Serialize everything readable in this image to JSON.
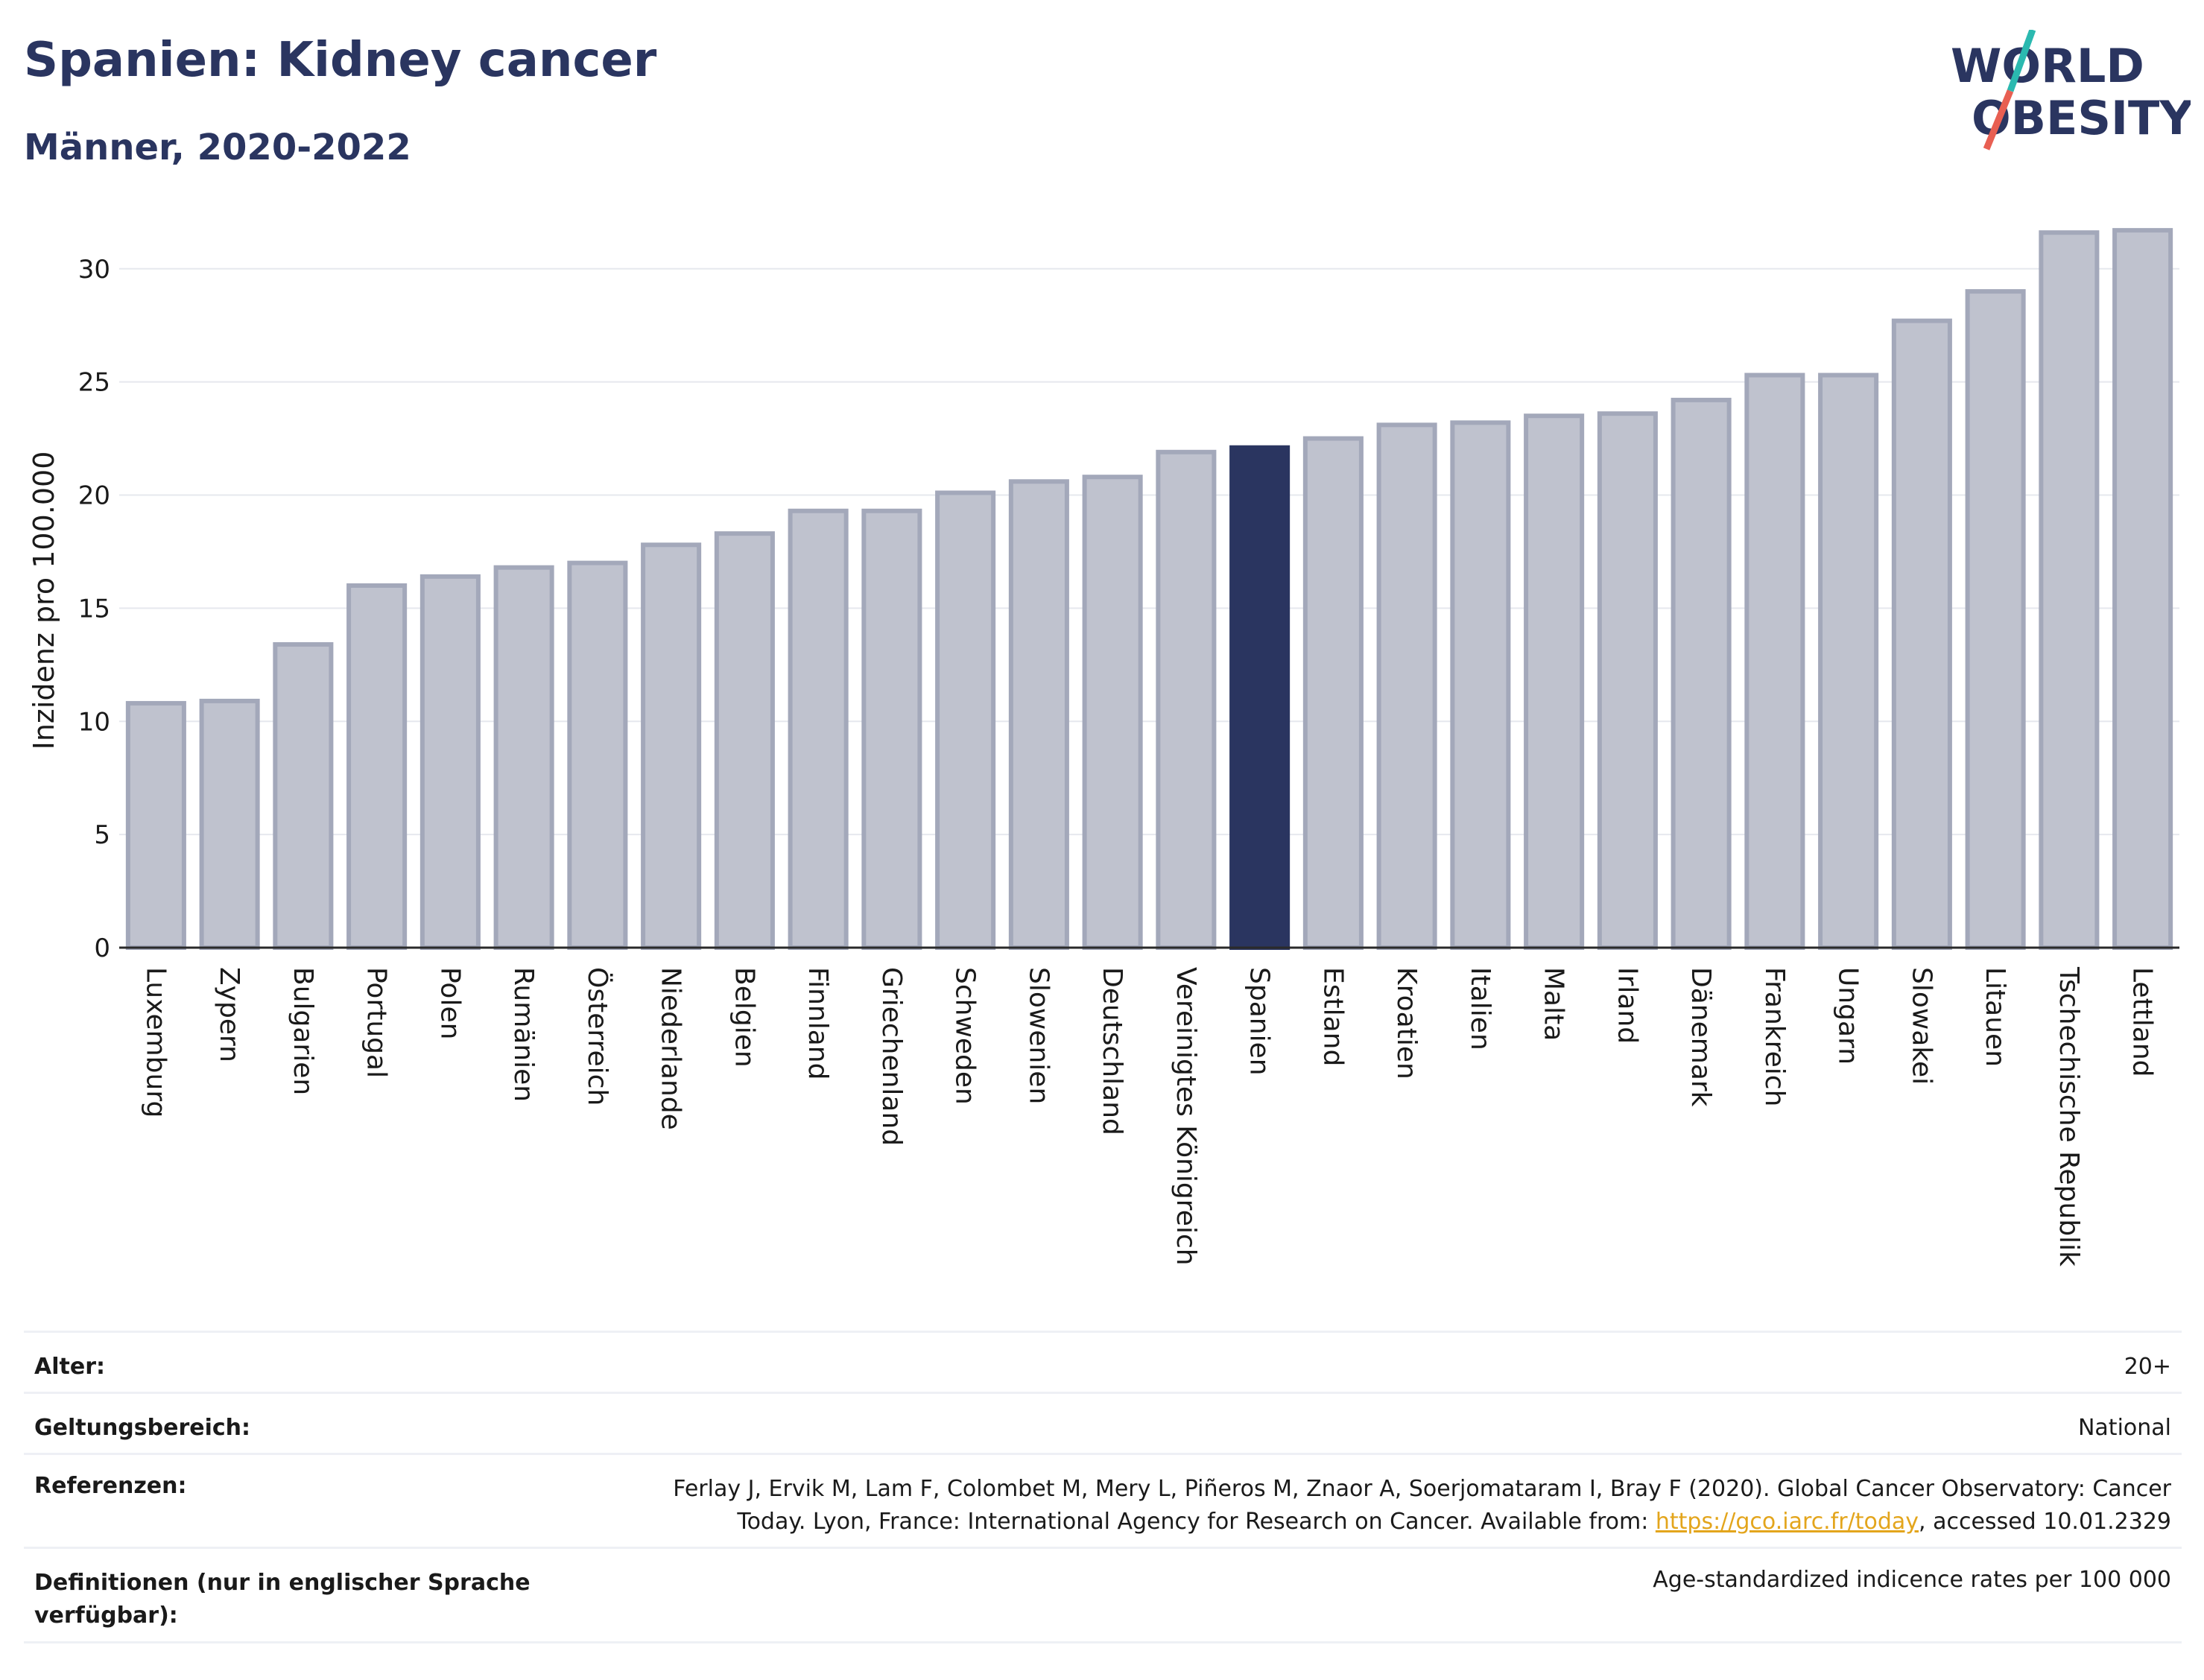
{
  "header": {
    "title": "Spanien: Kidney cancer",
    "subtitle": "Männer, 2020-2022"
  },
  "logo": {
    "line1": "WORLD",
    "line2": "OBESITY",
    "brand_color": "#2a3560",
    "slash_top_color": "#2bb9b0",
    "slash_bottom_color": "#e85f52"
  },
  "chart_data": {
    "type": "bar",
    "ylabel": "Inzidenz pro 100.000",
    "ylim": [
      0,
      32
    ],
    "yticks": [
      0,
      5,
      10,
      15,
      20,
      25,
      30
    ],
    "grid": true,
    "highlight": "Spanien",
    "bar_color": "#bfc2ce",
    "bar_edge_color": "#a3a8ba",
    "highlight_color": "#2a3560",
    "categories": [
      "Luxemburg",
      "Zypern",
      "Bulgarien",
      "Portugal",
      "Polen",
      "Rumänien",
      "Österreich",
      "Niederlande",
      "Belgien",
      "Finnland",
      "Griechenland",
      "Schweden",
      "Slowenien",
      "Deutschland",
      "Vereinigtes Königreich",
      "Spanien",
      "Estland",
      "Kroatien",
      "Italien",
      "Malta",
      "Irland",
      "Dänemark",
      "Frankreich",
      "Ungarn",
      "Slowakei",
      "Litauen",
      "Tschechische Republik",
      "Lettland"
    ],
    "values": [
      10.8,
      10.9,
      13.4,
      16.0,
      16.4,
      16.8,
      17.0,
      17.8,
      18.3,
      19.3,
      19.3,
      20.1,
      20.6,
      20.8,
      21.9,
      22.1,
      22.5,
      23.1,
      23.2,
      23.5,
      23.6,
      24.2,
      25.3,
      25.3,
      27.7,
      29.0,
      31.6,
      31.7
    ]
  },
  "meta": {
    "age_label": "Alter:",
    "age_value": "20+",
    "scope_label": "Geltungsbereich:",
    "scope_value": "National",
    "ref_label": "Referenzen:",
    "ref_line1": "Ferlay J, Ervik M, Lam F, Colombet M, Mery L, Piñeros M, Znaor A, Soerjomataram I, Bray F (2020). Global Cancer Observatory: Cancer",
    "ref_line2_pre": "Today. Lyon, France: International Agency for Research on Cancer. Available from: ",
    "ref_link": "https://gco.iarc.fr/today",
    "ref_line2_post": ", accessed 10.01.2329",
    "def_label_line1": "Definitionen (nur in englischer Sprache",
    "def_label_line2": "verfügbar):",
    "def_value": "Age-standardized indicence rates per 100 000"
  }
}
